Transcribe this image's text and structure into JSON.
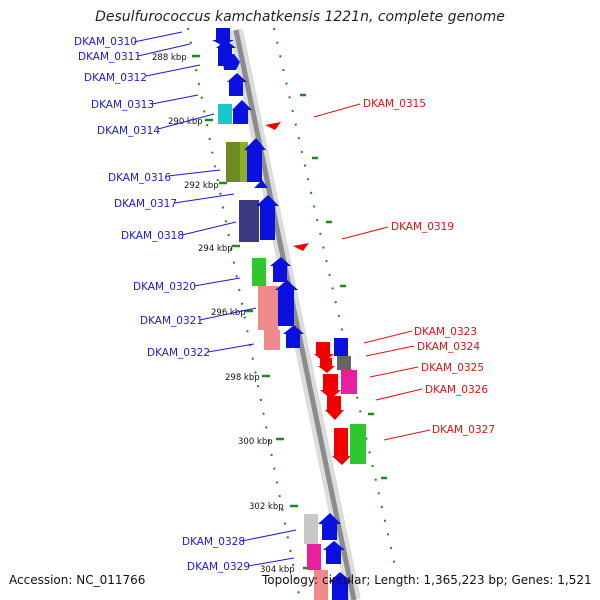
{
  "title": "Desulfurococcus kamchatkensis 1221n, complete genome",
  "accession": "Accession: NC_011766",
  "summary": "Topology: circular; Length: 1,365,223 bp; Genes: 1,521",
  "ticks": [
    "288 kbp",
    "290 kbp",
    "292 kbp",
    "294 kbp",
    "296 kbp",
    "298 kbp",
    "300 kbp",
    "302 kbp",
    "304 kbp"
  ],
  "genes_left": [
    "DKAM_0310",
    "DKAM_0311",
    "DKAM_0312",
    "DKAM_0313",
    "DKAM_0314",
    "DKAM_0316",
    "DKAM_0317",
    "DKAM_0318",
    "DKAM_0320",
    "DKAM_0321",
    "DKAM_0322",
    "DKAM_0328",
    "DKAM_0329"
  ],
  "genes_right": [
    "DKAM_0315",
    "DKAM_0319",
    "DKAM_0323",
    "DKAM_0324",
    "DKAM_0325",
    "DKAM_0326",
    "DKAM_0327"
  ],
  "colors": {
    "forward_label": "#1a1ad6",
    "reverse_label": "#e01010",
    "backbone": "#8c8c8c",
    "tick": "#1c8a1c",
    "cds_blue": "#0a10e0",
    "cds_red": "#f00000",
    "cds_cyan": "#18c8cc",
    "cds_olive": "#6f8a20",
    "cds_navy": "#3c3a84",
    "cds_green": "#2ec82e",
    "cds_salmon": "#ef8a8a",
    "cds_magenta": "#e820a0",
    "cds_gray": "#666666"
  }
}
